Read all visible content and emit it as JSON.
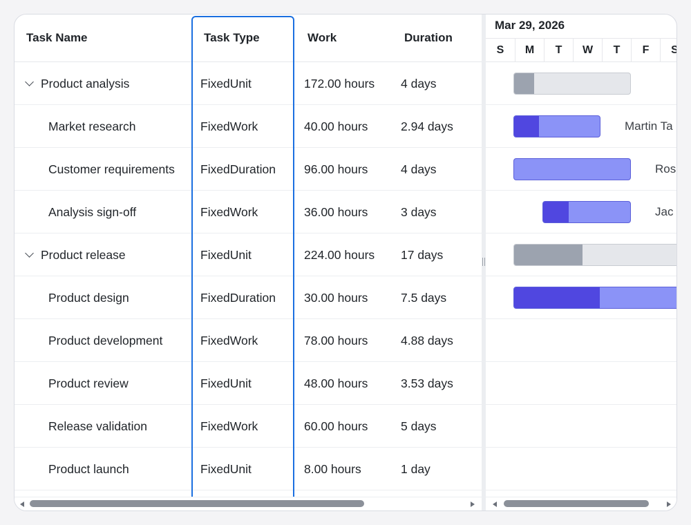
{
  "grid": {
    "columns": {
      "name": "Task Name",
      "type": "Task Type",
      "work": "Work",
      "duration": "Duration"
    },
    "rows": [
      {
        "name": "Product analysis",
        "parent": true,
        "type": "FixedUnit",
        "work": "172.00 hours",
        "duration": "4 days"
      },
      {
        "name": "Market research",
        "parent": false,
        "type": "FixedWork",
        "work": "40.00 hours",
        "duration": "2.94 days"
      },
      {
        "name": "Customer requirements",
        "parent": false,
        "type": "FixedDuration",
        "work": "96.00 hours",
        "duration": "4 days"
      },
      {
        "name": "Analysis sign-off",
        "parent": false,
        "type": "FixedWork",
        "work": "36.00 hours",
        "duration": "3 days"
      },
      {
        "name": "Product release",
        "parent": true,
        "type": "FixedUnit",
        "work": "224.00 hours",
        "duration": "17 days"
      },
      {
        "name": "Product design",
        "parent": false,
        "type": "FixedDuration",
        "work": "30.00 hours",
        "duration": "7.5 days"
      },
      {
        "name": "Product development",
        "parent": false,
        "type": "FixedWork",
        "work": "78.00 hours",
        "duration": "4.88 days"
      },
      {
        "name": "Product review",
        "parent": false,
        "type": "FixedUnit",
        "work": "48.00 hours",
        "duration": "3.53 days"
      },
      {
        "name": "Release validation",
        "parent": false,
        "type": "FixedWork",
        "work": "60.00 hours",
        "duration": "5 days"
      },
      {
        "name": "Product launch",
        "parent": false,
        "type": "FixedUnit",
        "work": "8.00 hours",
        "duration": "1 day"
      }
    ]
  },
  "timeline": {
    "month": "Mar 29, 2026",
    "days": [
      "S",
      "M",
      "T",
      "W",
      "T",
      "F",
      "S"
    ],
    "bars": [
      {
        "row": 0,
        "kind": "parent",
        "progress": 0.17
      },
      {
        "row": 1,
        "kind": "child",
        "progress": 0.29,
        "resource": "Martin Ta"
      },
      {
        "row": 2,
        "kind": "child",
        "progress": 0.0,
        "resource": "Ros"
      },
      {
        "row": 3,
        "kind": "child",
        "progress": 0.29,
        "resource": "Jac"
      },
      {
        "row": 4,
        "kind": "parent",
        "progress": 0.4
      },
      {
        "row": 5,
        "kind": "child",
        "progress": 0.5
      }
    ]
  },
  "colors": {
    "highlight": "#1a6fe0",
    "child_bar": "#8b93f7",
    "child_progress": "#5047e0",
    "parent_bar": "#e5e7eb",
    "parent_progress": "#9ca3af"
  }
}
